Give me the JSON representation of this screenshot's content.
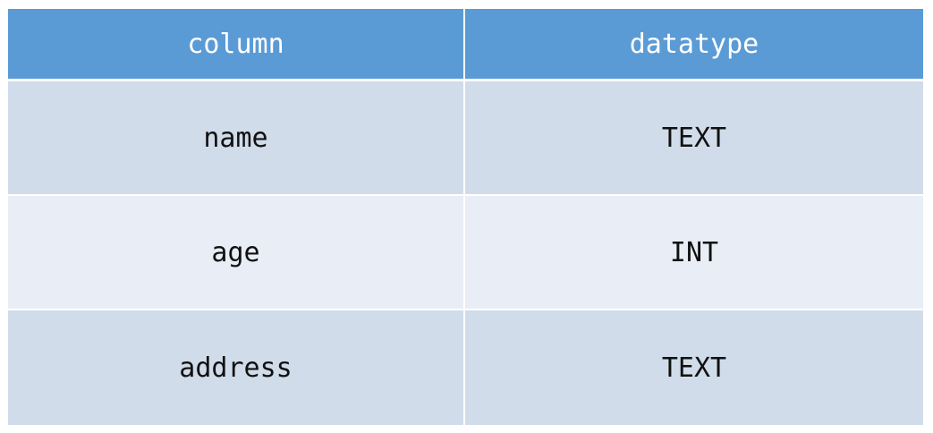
{
  "table": {
    "headers": [
      "column",
      "datatype"
    ],
    "rows": [
      {
        "column": "name",
        "datatype": "TEXT"
      },
      {
        "column": "age",
        "datatype": "INT"
      },
      {
        "column": "address",
        "datatype": "TEXT"
      }
    ]
  },
  "colors": {
    "header_bg": "#5b9bd5",
    "header_text": "#ffffff",
    "row_odd_bg": "#d0dcea",
    "row_even_bg": "#e9eef6",
    "cell_text": "#111111"
  }
}
